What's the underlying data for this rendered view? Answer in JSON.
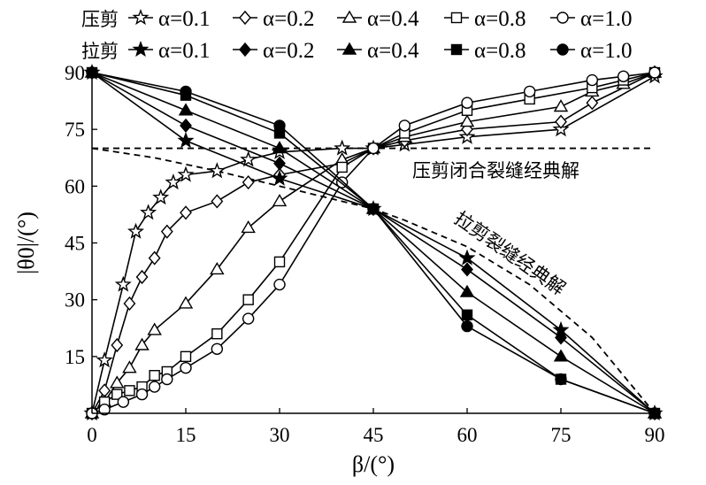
{
  "chart_data": {
    "type": "line",
    "xlabel": "β/(°)",
    "ylabel": "|θ0|/(°)",
    "xlim": [
      0,
      90
    ],
    "ylim": [
      0,
      90
    ],
    "xticks": [
      "0",
      "15",
      "30",
      "45",
      "60",
      "75",
      "90"
    ],
    "yticks": [
      "15",
      "30",
      "45",
      "60",
      "75",
      "90"
    ],
    "legend": {
      "position": "top",
      "rows": [
        {
          "label": "压剪",
          "entries": [
            "α=0.1",
            "α=0.2",
            "α=0.4",
            "α=0.8",
            "α=1.0"
          ]
        },
        {
          "label": "拉剪",
          "entries": [
            "α=0.1",
            "α=0.2",
            "α=0.4",
            "α=0.8",
            "α=1.0"
          ]
        }
      ]
    },
    "annotations": [
      {
        "text": "压剪闭合裂缝经典解"
      },
      {
        "text": "拉剪裂缝经典解"
      }
    ],
    "series": [
      {
        "name": "压剪 α=0.1",
        "marker": "star-open",
        "x": [
          0,
          2,
          5,
          7,
          9,
          11,
          13,
          15,
          20,
          25,
          30,
          40,
          45,
          50,
          60,
          75,
          90
        ],
        "y": [
          0,
          14,
          34,
          48,
          53,
          57,
          61,
          63,
          64,
          67,
          69,
          70,
          70,
          71,
          73,
          75,
          89
        ]
      },
      {
        "name": "压剪 α=0.2",
        "marker": "diamond-open",
        "x": [
          0,
          2,
          4,
          6,
          8,
          10,
          12,
          15,
          20,
          25,
          30,
          40,
          45,
          50,
          60,
          75,
          80,
          90
        ],
        "y": [
          0,
          6,
          18,
          29,
          36,
          41,
          48,
          53,
          56,
          61,
          63,
          66,
          70,
          72,
          75,
          77,
          82,
          90
        ]
      },
      {
        "name": "压剪 α=0.4",
        "marker": "triangle-open",
        "x": [
          0,
          2,
          4,
          6,
          8,
          10,
          15,
          20,
          25,
          30,
          40,
          45,
          50,
          60,
          75,
          80,
          85,
          90
        ],
        "y": [
          0,
          3,
          8,
          12,
          18,
          22,
          29,
          38,
          49,
          56,
          67,
          70,
          73,
          77,
          81,
          85,
          87,
          90
        ]
      },
      {
        "name": "压剪 α=0.8",
        "marker": "square-open",
        "x": [
          0,
          2,
          4,
          6,
          8,
          10,
          12,
          15,
          20,
          25,
          30,
          40,
          45,
          50,
          60,
          70,
          80,
          85,
          90
        ],
        "y": [
          0,
          3,
          5,
          6,
          7,
          10,
          11,
          15,
          21,
          30,
          40,
          65,
          70,
          74,
          80,
          83,
          86,
          88,
          90
        ]
      },
      {
        "name": "压剪 α=1.0",
        "marker": "circle-open",
        "x": [
          0,
          2,
          5,
          8,
          10,
          12,
          15,
          20,
          25,
          30,
          40,
          45,
          50,
          60,
          70,
          80,
          85,
          90
        ],
        "y": [
          0,
          1,
          3,
          5,
          7,
          9,
          12,
          17,
          25,
          34,
          61,
          70,
          76,
          82,
          85,
          88,
          89,
          90
        ]
      },
      {
        "name": "拉剪 α=0.1",
        "marker": "star-filled",
        "x": [
          0,
          15,
          30,
          45,
          60,
          75,
          90
        ],
        "y": [
          90,
          72,
          62,
          54,
          41,
          22,
          0
        ]
      },
      {
        "name": "拉剪 α=0.2",
        "marker": "diamond-filled",
        "x": [
          0,
          15,
          30,
          45,
          60,
          75,
          90
        ],
        "y": [
          90,
          76,
          66,
          54,
          38,
          20,
          0
        ]
      },
      {
        "name": "拉剪 α=0.4",
        "marker": "triangle-filled",
        "x": [
          0,
          15,
          30,
          45,
          60,
          75,
          90
        ],
        "y": [
          90,
          80,
          70,
          54,
          32,
          15,
          0
        ]
      },
      {
        "name": "拉剪 α=0.8",
        "marker": "square-filled",
        "x": [
          0,
          15,
          30,
          45,
          60,
          75,
          90
        ],
        "y": [
          90,
          84,
          74,
          54,
          26,
          9,
          0
        ]
      },
      {
        "name": "拉剪 α=1.0",
        "marker": "circle-filled",
        "x": [
          0,
          15,
          30,
          45,
          60,
          75,
          90
        ],
        "y": [
          90,
          85,
          76,
          54,
          23,
          9,
          0
        ]
      }
    ],
    "reference_lines": [
      {
        "name": "压剪闭合裂缝经典解",
        "style": "dashed",
        "x": [
          0,
          90
        ],
        "y": [
          70,
          70
        ]
      },
      {
        "name": "拉剪裂缝经典解",
        "style": "dashed",
        "x": [
          0,
          10,
          20,
          30,
          40,
          45,
          50,
          60,
          70,
          80,
          90
        ],
        "y": [
          70,
          67.5,
          64,
          60,
          56,
          54,
          51,
          44,
          34,
          20,
          0
        ]
      }
    ]
  }
}
